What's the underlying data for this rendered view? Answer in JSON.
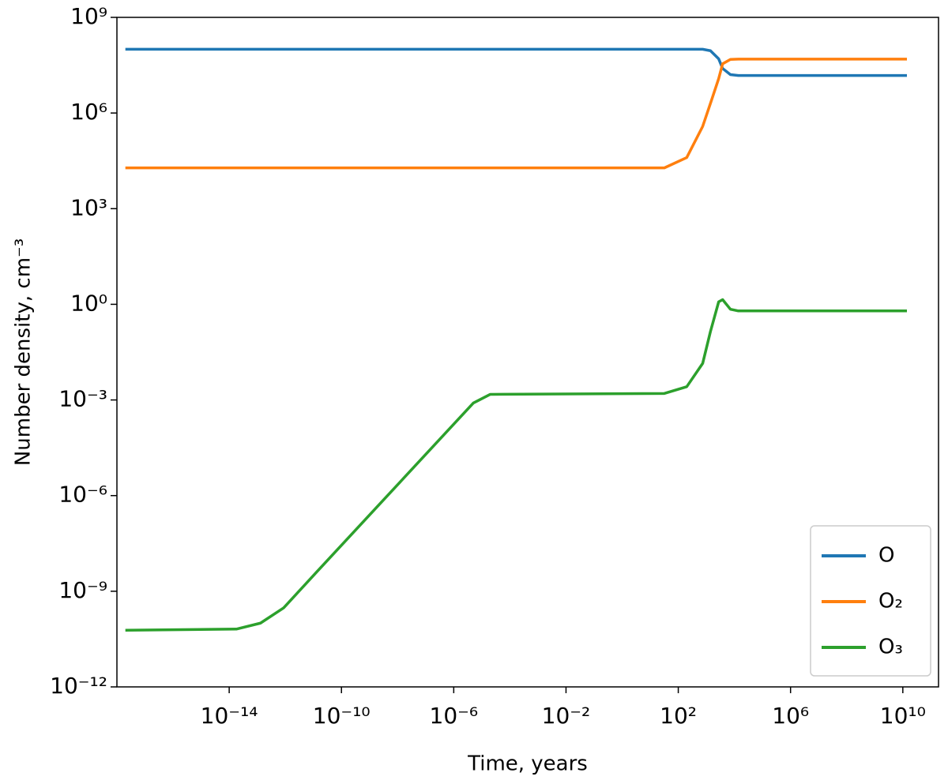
{
  "chart_data": {
    "type": "line",
    "x_label": "Time, years",
    "y_label": "Number density, cm⁻³",
    "x": [
      2e-18,
      1.8e-14,
      1.3e-13,
      8.7e-13,
      1.3e-11,
      5e-06,
      2e-05,
      32,
      200,
      740,
      1400,
      2750,
      3800,
      7200,
      13800,
      14000000000.0
    ],
    "series": [
      {
        "name": "O",
        "color": "#1f77b4",
        "values": [
          100000000.0,
          100000000.0,
          100000000.0,
          100000000.0,
          100000000.0,
          100000000.0,
          100000000.0,
          100000000.0,
          100000000.0,
          100000000.0,
          90000000.0,
          50000000.0,
          25000000.0,
          16000000.0,
          15000000.0,
          15000000.0
        ]
      },
      {
        "name": "O₂",
        "color": "#ff7f0e",
        "values": [
          19000.0,
          19000.0,
          19000.0,
          19000.0,
          19000.0,
          19000.0,
          19000.0,
          19000.0,
          40000.0,
          380000.0,
          2000000.0,
          12000000.0,
          35000000.0,
          48000000.0,
          49000000.0,
          49000000.0
        ]
      },
      {
        "name": "O₃",
        "color": "#2ca02c",
        "values": [
          6e-11,
          6.5e-11,
          1e-10,
          3e-10,
          4e-09,
          0.0008,
          0.0015,
          0.0016,
          0.0026,
          0.014,
          0.14,
          1.2,
          1.4,
          0.7,
          0.62,
          0.62
        ]
      }
    ],
    "xlim": [
      1e-18,
      187000000000.0
    ],
    "ylim": [
      1e-12,
      1000000000.0
    ],
    "xticks": [
      {
        "value": 1e-14,
        "label": "10⁻¹⁴"
      },
      {
        "value": 1e-10,
        "label": "10⁻¹⁰"
      },
      {
        "value": 1e-06,
        "label": "10⁻⁶"
      },
      {
        "value": 0.01,
        "label": "10⁻²"
      },
      {
        "value": 100,
        "label": "10²"
      },
      {
        "value": 1000000.0,
        "label": "10⁶"
      },
      {
        "value": 10000000000.0,
        "label": "10¹⁰"
      }
    ],
    "yticks": [
      {
        "value": 1e-12,
        "label": "10⁻¹²"
      },
      {
        "value": 1e-09,
        "label": "10⁻⁹"
      },
      {
        "value": 1e-06,
        "label": "10⁻⁶"
      },
      {
        "value": 0.001,
        "label": "10⁻³"
      },
      {
        "value": 1,
        "label": "10⁰"
      },
      {
        "value": 1000,
        "label": "10³"
      },
      {
        "value": 1000000.0,
        "label": "10⁶"
      },
      {
        "value": 1000000000.0,
        "label": "10⁹"
      }
    ],
    "log_x": true,
    "log_y": true,
    "grid": false,
    "legend": "lower right"
  }
}
